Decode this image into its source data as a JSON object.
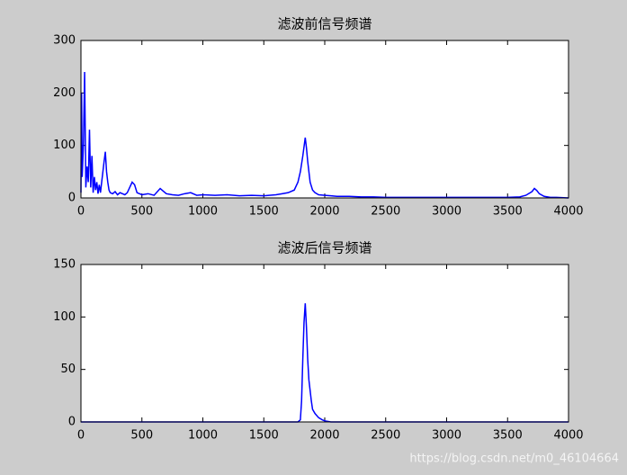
{
  "chart_data": [
    {
      "type": "line",
      "title": "滤波前信号频谱",
      "x": [
        0,
        5,
        10,
        20,
        30,
        40,
        50,
        60,
        70,
        80,
        90,
        100,
        110,
        120,
        130,
        140,
        150,
        160,
        170,
        180,
        190,
        200,
        210,
        220,
        230,
        240,
        260,
        280,
        300,
        320,
        340,
        360,
        380,
        400,
        420,
        440,
        460,
        480,
        500,
        550,
        600,
        650,
        700,
        750,
        800,
        850,
        900,
        950,
        1000,
        1100,
        1200,
        1300,
        1400,
        1500,
        1600,
        1650,
        1700,
        1750,
        1780,
        1800,
        1820,
        1840,
        1850,
        1860,
        1870,
        1880,
        1900,
        1920,
        1950,
        2000,
        2050,
        2100,
        2200,
        2300,
        2400,
        2500,
        2600,
        2800,
        3000,
        3200,
        3400,
        3500,
        3600,
        3650,
        3700,
        3720,
        3740,
        3760,
        3800,
        3850,
        3900,
        4000
      ],
      "series": [
        {
          "color": "#0000ff",
          "values": [
            10,
            200,
            40,
            100,
            240,
            20,
            60,
            30,
            130,
            20,
            80,
            10,
            40,
            15,
            30,
            8,
            25,
            10,
            30,
            50,
            70,
            88,
            50,
            30,
            15,
            10,
            8,
            12,
            6,
            10,
            8,
            6,
            10,
            20,
            30,
            25,
            10,
            8,
            6,
            8,
            5,
            18,
            8,
            6,
            5,
            8,
            10,
            5,
            6,
            5,
            6,
            4,
            5,
            4,
            6,
            8,
            10,
            15,
            30,
            50,
            80,
            115,
            95,
            70,
            50,
            30,
            15,
            10,
            6,
            5,
            4,
            3,
            3,
            2,
            2,
            1,
            1,
            1,
            1,
            1,
            1,
            1,
            2,
            5,
            12,
            18,
            14,
            8,
            3,
            1,
            1,
            0
          ]
        }
      ],
      "xlim": [
        0,
        4000
      ],
      "xticks": [
        0,
        500,
        1000,
        1500,
        2000,
        2500,
        3000,
        3500,
        4000
      ],
      "ylim": [
        0,
        300
      ],
      "yticks": [
        0,
        100,
        200,
        300
      ]
    },
    {
      "type": "line",
      "title": "滤波后信号频谱",
      "x": [
        0,
        500,
        1000,
        1500,
        1780,
        1800,
        1810,
        1820,
        1830,
        1840,
        1850,
        1860,
        1870,
        1880,
        1890,
        1900,
        1920,
        1950,
        1980,
        2000,
        2050,
        2500,
        3000,
        3500,
        4000
      ],
      "series": [
        {
          "color": "#0000ff",
          "values": [
            0,
            0,
            0,
            0,
            0,
            2,
            20,
            60,
            95,
            113,
            90,
            60,
            40,
            30,
            20,
            12,
            8,
            4,
            2,
            1,
            0,
            0,
            0,
            0,
            0
          ]
        }
      ],
      "xlim": [
        0,
        4000
      ],
      "xticks": [
        0,
        500,
        1000,
        1500,
        2000,
        2500,
        3000,
        3500,
        4000
      ],
      "ylim": [
        0,
        150
      ],
      "yticks": [
        0,
        50,
        100,
        150
      ]
    }
  ],
  "watermark": "https://blog.csdn.net/m0_46104664"
}
